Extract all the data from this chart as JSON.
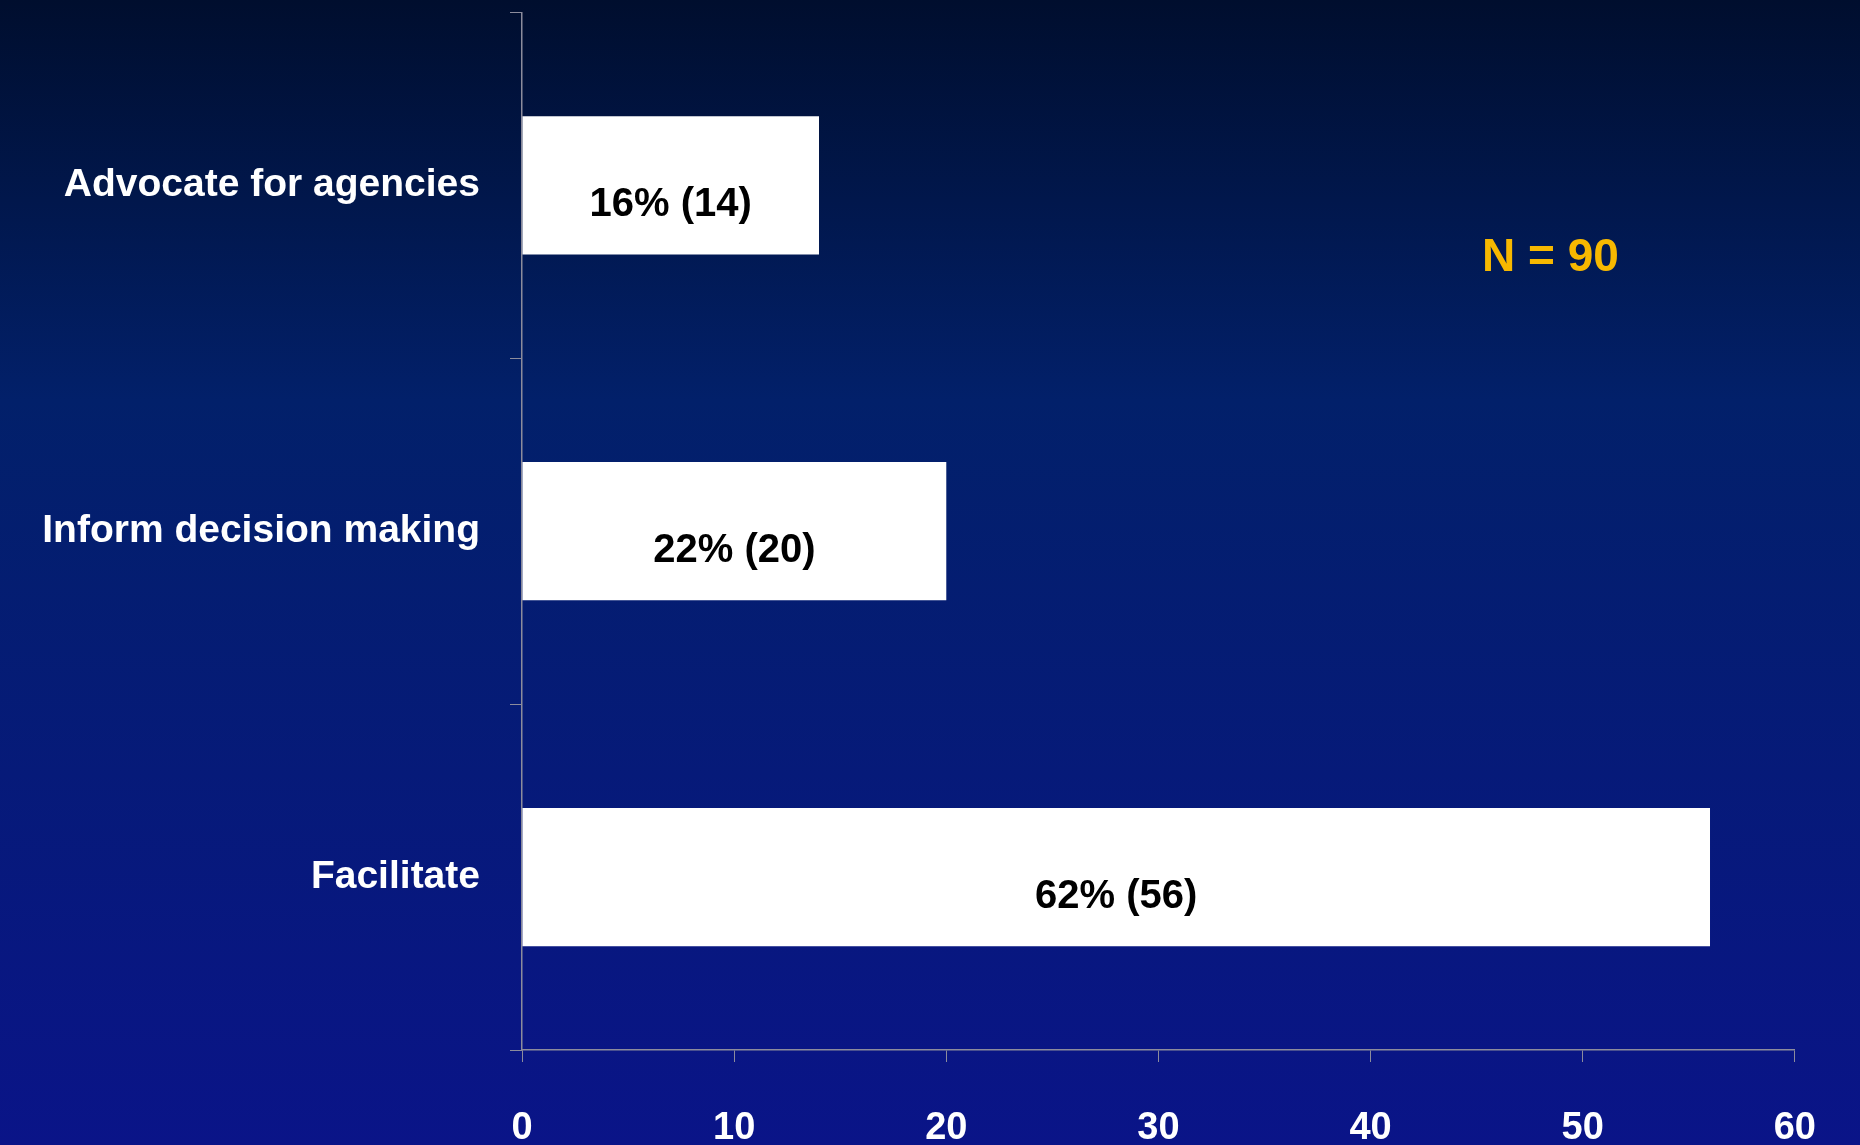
{
  "chart_data": {
    "type": "bar",
    "orientation": "horizontal",
    "categories": [
      "Advocate for agencies",
      "Inform decision making",
      "Facilitate"
    ],
    "values": [
      14,
      20,
      56
    ],
    "color": "#ffffff",
    "value_labels": [
      "16% (14)",
      "22% (20)",
      "62% (56)"
    ],
    "xlim": [
      0,
      60
    ],
    "xticks": [
      0,
      10,
      20,
      30,
      40,
      50,
      60
    ],
    "grid": false,
    "legend": false,
    "annotations": [
      "N = 90"
    ]
  }
}
